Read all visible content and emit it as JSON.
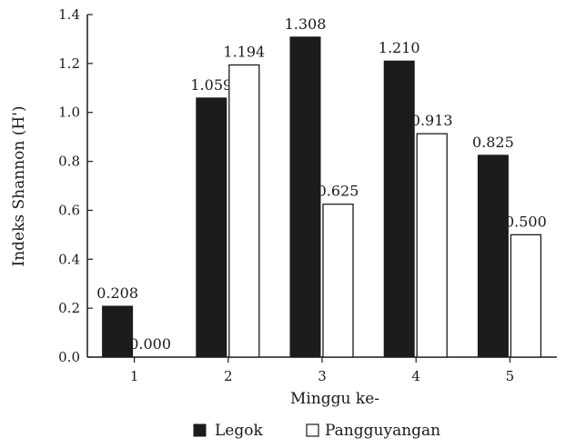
{
  "chart_data": {
    "type": "bar",
    "categories": [
      "1",
      "2",
      "3",
      "4",
      "5"
    ],
    "series": [
      {
        "name": "Legok",
        "values": [
          0.208,
          1.059,
          1.308,
          1.21,
          0.825
        ],
        "labels": [
          "0.208",
          "1.059",
          "1.308",
          "1.210",
          "0.825"
        ]
      },
      {
        "name": "Pangguyangan",
        "values": [
          0.0,
          1.194,
          0.625,
          0.913,
          0.5
        ],
        "labels": [
          "0.000",
          "1.194",
          "0.625",
          "0.913",
          "0.500"
        ]
      }
    ],
    "yticks": [
      "0.0",
      "0.2",
      "0.4",
      "0.6",
      "0.8",
      "1.0",
      "1.2",
      "1.4"
    ],
    "xlabel": "Minggu ke-",
    "ylabel": "Indeks Shannon (H')",
    "ylim": [
      0,
      1.4
    ],
    "grid": false,
    "legend_position": "bottom-center",
    "colors": {
      "legok": "#1c1c1c",
      "pangguyangan": "#ffffff",
      "axis": "#1a1a1a"
    }
  }
}
